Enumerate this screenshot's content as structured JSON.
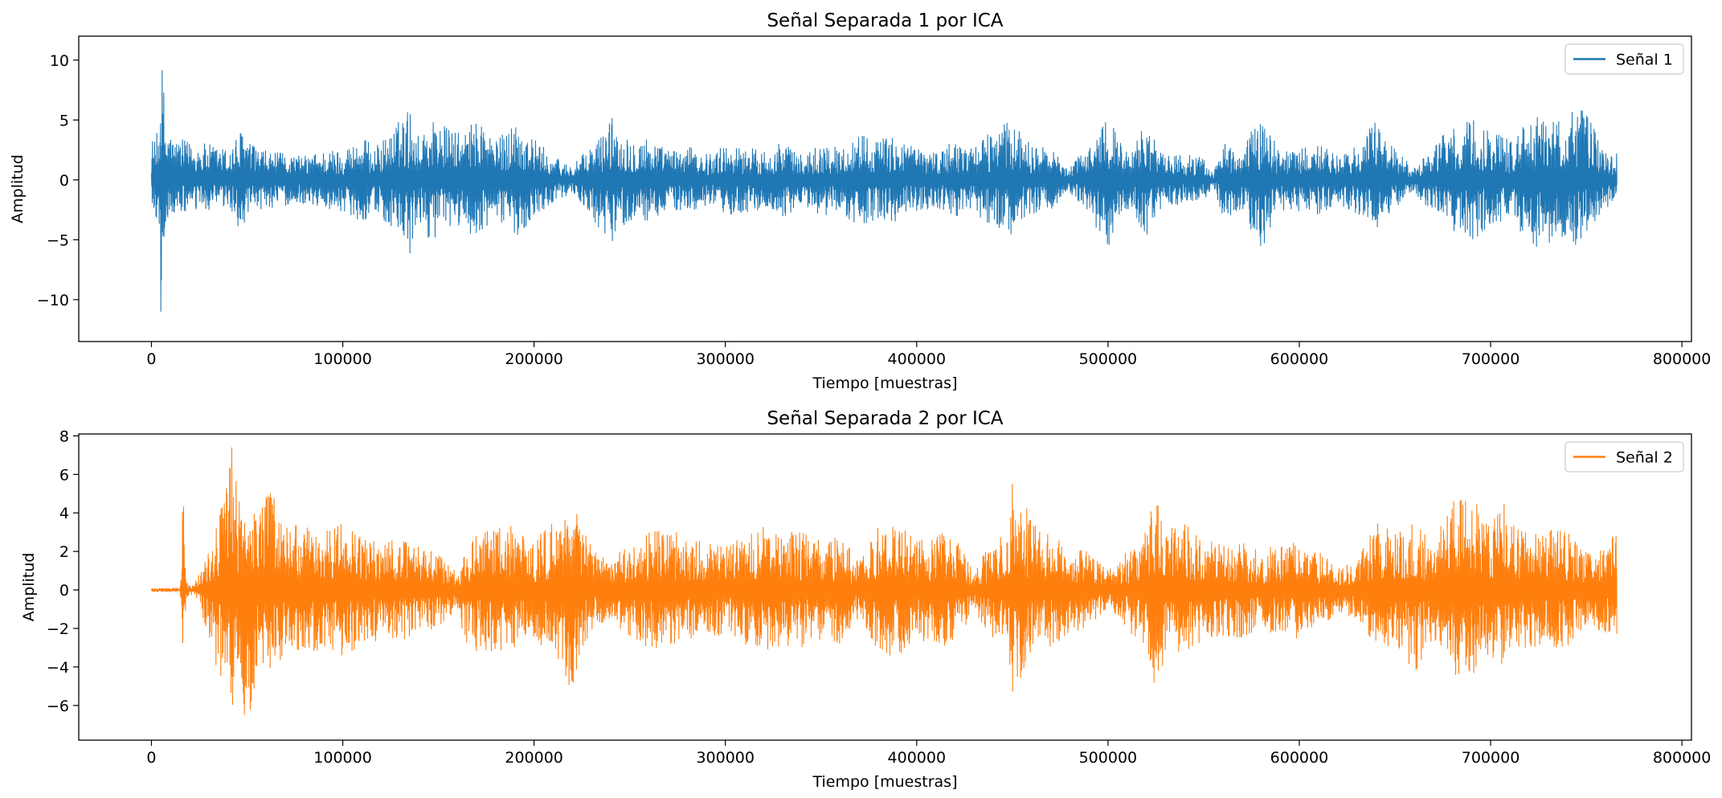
{
  "chart_data": [
    {
      "type": "line",
      "title": "Señal Separada 1 por ICA",
      "xlabel": "Tiempo [muestras]",
      "ylabel": "Amplitud",
      "xlim": [
        -38000,
        805000
      ],
      "ylim": [
        -13.5,
        12
      ],
      "xticks": [
        0,
        100000,
        200000,
        300000,
        400000,
        500000,
        600000,
        700000,
        800000
      ],
      "xtick_labels": [
        "0",
        "100000",
        "200000",
        "300000",
        "400000",
        "500000",
        "600000",
        "700000",
        "800000"
      ],
      "yticks": [
        10,
        5,
        0,
        -5,
        -10
      ],
      "ytick_labels": [
        "10",
        "5",
        "0",
        "−5",
        "−10"
      ],
      "legend": "upper-right",
      "grid": false,
      "series": [
        {
          "name": "Señal 1",
          "color": "#1f77b4",
          "envelope_x": [
            0,
            2000,
            4000,
            5000,
            6000,
            8000,
            12000,
            20000,
            30000,
            40000,
            48000,
            52000,
            60000,
            70000,
            80000,
            90000,
            100000,
            110000,
            117000,
            125000,
            135000,
            140000,
            145000,
            154000,
            162000,
            172000,
            180000,
            190000,
            200000,
            210000,
            215000,
            220000,
            228000,
            236000,
            240000,
            248000,
            260000,
            270000,
            280000,
            290000,
            300000,
            310000,
            320000,
            330000,
            340000,
            350000,
            360000,
            370000,
            380000,
            390000,
            400000,
            410000,
            420000,
            430000,
            440000,
            450000,
            460000,
            470000,
            480000,
            490000,
            500000,
            505000,
            510000,
            515000,
            520000,
            525000,
            530000,
            540000,
            550000,
            555000,
            560000,
            570000,
            580000,
            590000,
            600000,
            610000,
            620000,
            630000,
            640000,
            650000,
            660000,
            670000,
            675000,
            690000,
            700000,
            710000,
            720000,
            730000,
            740000,
            745000,
            750000,
            760000,
            766000
          ],
          "envelope_max": [
            3.8,
            3.2,
            5.0,
            10.8,
            9.0,
            4.5,
            3.5,
            3.2,
            3.0,
            2.6,
            4.5,
            3.0,
            2.4,
            2.2,
            2.0,
            2.5,
            2.6,
            3.6,
            2.8,
            4.0,
            6.2,
            3.5,
            5.4,
            4.5,
            3.8,
            5.4,
            3.2,
            5.2,
            3.5,
            2.0,
            1.6,
            1.2,
            2.5,
            4.0,
            5.5,
            3.8,
            3.6,
            2.5,
            2.8,
            2.2,
            2.9,
            2.8,
            2.5,
            3.3,
            2.0,
            3.2,
            2.6,
            4.0,
            3.5,
            3.6,
            2.8,
            2.5,
            3.2,
            2.8,
            4.2,
            5.0,
            3.0,
            2.5,
            1.2,
            2.8,
            6.1,
            3.5,
            2.6,
            3.5,
            5.4,
            3.0,
            2.0,
            2.2,
            1.8,
            0.5,
            3.2,
            2.5,
            5.6,
            2.5,
            2.6,
            3.0,
            2.0,
            2.8,
            5.0,
            2.5,
            1.0,
            3.0,
            3.8,
            5.0,
            4.5,
            3.3,
            5.0,
            5.7,
            4.8,
            6.7,
            5.5,
            2.5,
            2.2
          ],
          "envelope_min": [
            -3.5,
            -3.0,
            -4.0,
            -12.4,
            -8.0,
            -3.5,
            -3.0,
            -2.8,
            -2.6,
            -2.5,
            -4.6,
            -3.0,
            -2.4,
            -2.2,
            -2.0,
            -2.4,
            -2.6,
            -3.5,
            -2.8,
            -4.0,
            -6.9,
            -3.5,
            -5.0,
            -4.5,
            -3.8,
            -5.2,
            -3.2,
            -4.8,
            -3.2,
            -1.8,
            -1.4,
            -1.2,
            -2.5,
            -5.2,
            -5.4,
            -3.6,
            -3.5,
            -2.5,
            -2.8,
            -2.2,
            -3.0,
            -2.8,
            -2.4,
            -3.3,
            -2.0,
            -3.2,
            -2.6,
            -4.1,
            -3.4,
            -3.5,
            -2.8,
            -2.5,
            -3.2,
            -2.8,
            -4.0,
            -4.6,
            -3.0,
            -2.5,
            -1.2,
            -2.8,
            -6.0,
            -3.4,
            -2.6,
            -3.3,
            -5.3,
            -3.0,
            -2.0,
            -2.2,
            -1.8,
            -0.5,
            -3.2,
            -2.5,
            -6.2,
            -2.5,
            -2.6,
            -3.0,
            -2.0,
            -2.8,
            -4.2,
            -2.5,
            -1.0,
            -3.0,
            -3.8,
            -5.0,
            -4.3,
            -3.3,
            -5.6,
            -5.6,
            -4.8,
            -5.8,
            -5.0,
            -2.4,
            -2.2
          ]
        }
      ]
    },
    {
      "type": "line",
      "title": "Señal Separada 2 por ICA",
      "xlabel": "Tiempo [muestras]",
      "ylabel": "Amplitud",
      "xlim": [
        -38000,
        805000
      ],
      "ylim": [
        -7.8,
        8.1
      ],
      "xticks": [
        0,
        100000,
        200000,
        300000,
        400000,
        500000,
        600000,
        700000,
        800000
      ],
      "xtick_labels": [
        "0",
        "100000",
        "200000",
        "300000",
        "400000",
        "500000",
        "600000",
        "700000",
        "800000"
      ],
      "yticks": [
        8,
        6,
        4,
        2,
        0,
        -2,
        -4,
        -6
      ],
      "ytick_labels": [
        "8",
        "6",
        "4",
        "2",
        "0",
        "−2",
        "−4",
        "−6"
      ],
      "legend": "upper-right",
      "grid": false,
      "series": [
        {
          "name": "Señal 2",
          "color": "#ff7f0e",
          "envelope_x": [
            0,
            10000,
            15000,
            16500,
            18000,
            22000,
            27000,
            30000,
            35000,
            40000,
            42000,
            45000,
            50000,
            55000,
            60000,
            63000,
            70000,
            80000,
            90000,
            100000,
            110000,
            120000,
            130000,
            140000,
            150000,
            160000,
            165000,
            175000,
            190000,
            200000,
            210000,
            215000,
            220000,
            225000,
            230000,
            240000,
            250000,
            260000,
            270000,
            280000,
            290000,
            300000,
            310000,
            320000,
            330000,
            340000,
            350000,
            360000,
            370000,
            380000,
            390000,
            400000,
            410000,
            420000,
            430000,
            440000,
            447000,
            450000,
            455000,
            460000,
            470000,
            480000,
            490000,
            500000,
            510000,
            520000,
            525000,
            530000,
            540000,
            550000,
            560000,
            570000,
            580000,
            590000,
            600000,
            610000,
            620000,
            630000,
            640000,
            650000,
            660000,
            670000,
            680000,
            685000,
            690000,
            700000,
            705000,
            710000,
            720000,
            730000,
            740000,
            750000,
            760000,
            766000
          ],
          "envelope_max": [
            0.1,
            0.1,
            0.1,
            6.2,
            0.5,
            0.2,
            1.5,
            2.5,
            4.0,
            6.5,
            7.4,
            5.5,
            4.5,
            4.5,
            4.8,
            5.8,
            3.5,
            3.3,
            3.0,
            3.5,
            2.8,
            2.5,
            2.7,
            2.2,
            2.0,
            1.0,
            2.5,
            3.2,
            3.5,
            2.5,
            3.6,
            4.2,
            5.4,
            3.5,
            2.2,
            1.5,
            2.5,
            3.0,
            3.2,
            2.8,
            2.5,
            2.3,
            2.8,
            3.3,
            3.0,
            3.0,
            2.6,
            2.8,
            1.5,
            3.3,
            3.5,
            2.5,
            3.0,
            2.8,
            1.2,
            2.5,
            3.0,
            6.1,
            5.0,
            3.5,
            3.0,
            2.2,
            2.0,
            1.0,
            2.0,
            3.2,
            5.4,
            3.5,
            3.5,
            2.5,
            2.5,
            2.5,
            2.0,
            2.5,
            2.5,
            2.0,
            1.2,
            1.5,
            3.5,
            3.0,
            3.5,
            2.5,
            4.5,
            5.5,
            5.0,
            3.5,
            5.4,
            3.5,
            3.0,
            3.3,
            3.0,
            2.0,
            2.2,
            3.1
          ],
          "envelope_min": [
            -0.1,
            -0.1,
            -0.1,
            -5.2,
            -0.5,
            -0.2,
            -1.5,
            -2.5,
            -4.5,
            -5.2,
            -6.5,
            -5.5,
            -7.0,
            -5.0,
            -4.5,
            -4.0,
            -3.5,
            -3.5,
            -3.0,
            -3.5,
            -2.8,
            -2.6,
            -2.7,
            -2.2,
            -2.0,
            -1.0,
            -3.3,
            -3.2,
            -3.2,
            -2.5,
            -3.5,
            -4.5,
            -5.2,
            -3.5,
            -2.2,
            -1.5,
            -2.5,
            -3.0,
            -3.2,
            -2.8,
            -2.5,
            -2.3,
            -2.8,
            -3.2,
            -3.0,
            -3.0,
            -2.6,
            -2.8,
            -1.5,
            -3.3,
            -3.5,
            -2.5,
            -3.0,
            -2.8,
            -1.2,
            -2.5,
            -3.0,
            -5.8,
            -5.0,
            -3.5,
            -3.0,
            -2.2,
            -2.0,
            -1.0,
            -2.0,
            -3.2,
            -5.6,
            -3.5,
            -3.5,
            -2.5,
            -2.5,
            -2.5,
            -2.0,
            -2.5,
            -2.5,
            -2.0,
            -1.2,
            -1.5,
            -3.0,
            -3.0,
            -4.4,
            -2.5,
            -4.0,
            -5.2,
            -4.5,
            -3.5,
            -4.5,
            -3.0,
            -3.0,
            -3.0,
            -3.0,
            -2.0,
            -2.2,
            -2.3
          ]
        }
      ]
    }
  ]
}
